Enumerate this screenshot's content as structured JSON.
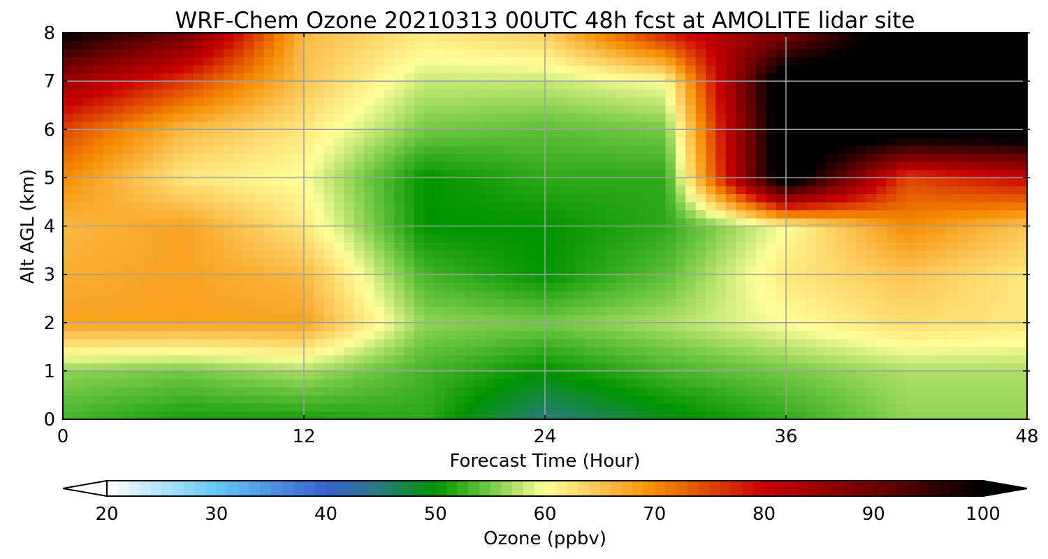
{
  "chart_data": {
    "type": "heatmap",
    "title": "WRF-Chem Ozone  20210313 00UTC 48h fcst at AMOLITE lidar site",
    "xlabel": "Forecast Time (Hour)",
    "ylabel": "Alt AGL (km)",
    "xlim": [
      0,
      48
    ],
    "ylim": [
      0,
      8
    ],
    "x_ticks": [
      0,
      12,
      24,
      36,
      48
    ],
    "y_ticks": [
      0,
      1,
      2,
      3,
      4,
      5,
      6,
      7,
      8
    ],
    "grid": true,
    "units": "ppbv",
    "x": [
      0,
      6,
      12,
      18,
      24,
      30,
      36,
      42,
      48
    ],
    "y": [
      0,
      1,
      2,
      3,
      4,
      5,
      6,
      7,
      8
    ],
    "z": [
      [
        53,
        51,
        51,
        52,
        45,
        49,
        52,
        56,
        56
      ],
      [
        56,
        55,
        57,
        53,
        50,
        53,
        55,
        57,
        57
      ],
      [
        68,
        68,
        68,
        56,
        55,
        57,
        60,
        63,
        62
      ],
      [
        67,
        68,
        66,
        53,
        50,
        54,
        62,
        65,
        62
      ],
      [
        66,
        68,
        62,
        50,
        50,
        52,
        60,
        70,
        65
      ],
      [
        70,
        62,
        60,
        50,
        52,
        52,
        105,
        75,
        80
      ],
      [
        75,
        66,
        62,
        55,
        54,
        55,
        105,
        105,
        105
      ],
      [
        85,
        76,
        65,
        58,
        58,
        60,
        105,
        105,
        105
      ],
      [
        100,
        90,
        66,
        62,
        64,
        78,
        88,
        105,
        105
      ]
    ],
    "colorbar": {
      "label": "Ozone  (ppbv)",
      "min": 20,
      "max": 100,
      "ticks": [
        20,
        30,
        40,
        50,
        60,
        70,
        80,
        90,
        100
      ],
      "extend": "both",
      "colors": [
        {
          "v": 20,
          "c": "#ffffff"
        },
        {
          "v": 30,
          "c": "#66c7f5"
        },
        {
          "v": 40,
          "c": "#3a5fd0"
        },
        {
          "v": 45,
          "c": "#2a7a80"
        },
        {
          "v": 50,
          "c": "#009300"
        },
        {
          "v": 55,
          "c": "#74c944"
        },
        {
          "v": 60,
          "c": "#ffff99"
        },
        {
          "v": 65,
          "c": "#fcc453"
        },
        {
          "v": 70,
          "c": "#f58c00"
        },
        {
          "v": 80,
          "c": "#c80000"
        },
        {
          "v": 90,
          "c": "#6e0000"
        },
        {
          "v": 100,
          "c": "#000000"
        }
      ]
    }
  }
}
